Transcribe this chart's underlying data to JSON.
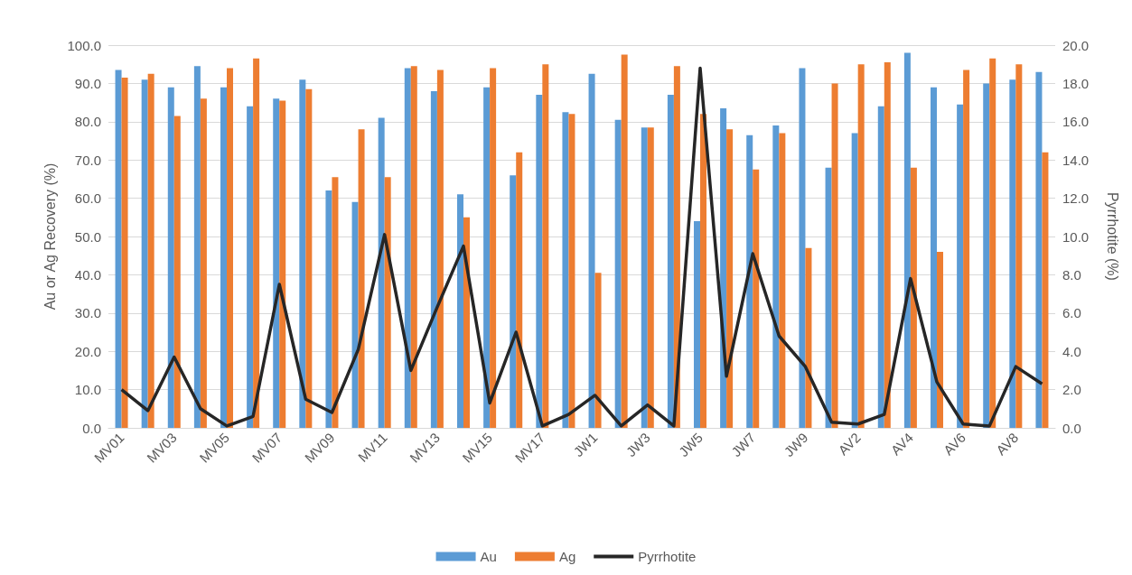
{
  "chart_data": {
    "type": "bar",
    "ylabel": "Au or Ag Recovery (%)",
    "y2label": "Pyrrhotite (%)",
    "categories": [
      "MV01",
      null,
      "MV03",
      null,
      "MV05",
      null,
      "MV07",
      null,
      "MV09",
      null,
      "MV11",
      null,
      "MV13",
      null,
      "MV15",
      null,
      "MV17",
      null,
      "JW1",
      null,
      "JW3",
      null,
      "JW5",
      null,
      "JW7",
      null,
      "JW9",
      null,
      "AV2",
      null,
      "AV4",
      null,
      "AV6",
      null,
      "AV8",
      null
    ],
    "series": [
      {
        "name": "Au",
        "color": "#5b9bd5",
        "values": [
          93.5,
          91,
          89,
          94.5,
          89,
          84,
          86,
          91,
          62,
          59,
          81,
          94,
          88,
          61,
          89,
          66,
          87,
          82.5,
          92.5,
          80.5,
          78.5,
          87,
          54,
          83.5,
          76.5,
          79,
          94,
          68,
          77,
          84,
          98,
          89,
          84.5,
          90,
          91,
          93
        ]
      },
      {
        "name": "Ag",
        "color": "#ed7d31",
        "values": [
          91.5,
          92.5,
          81.5,
          86,
          94,
          96.5,
          85.5,
          88.5,
          65.5,
          78,
          65.5,
          94.5,
          93.5,
          55,
          94,
          72,
          95,
          82,
          40.5,
          97.5,
          78.5,
          94.5,
          82,
          78,
          67.5,
          77,
          47,
          90,
          95,
          95.5,
          68,
          46,
          93.5,
          96.5,
          95,
          72
        ]
      },
      {
        "name": "Pyrrhotite",
        "type": "line",
        "axis": "y2",
        "color": "#262626",
        "values": [
          2.0,
          0.9,
          3.7,
          1.0,
          0.1,
          0.6,
          7.5,
          1.5,
          0.8,
          4.1,
          10.1,
          3.0,
          6.3,
          9.5,
          1.3,
          5.0,
          0.1,
          0.7,
          1.7,
          0.1,
          1.2,
          0.1,
          18.8,
          2.7,
          9.1,
          4.8,
          3.2,
          0.3,
          0.2,
          0.7,
          7.8,
          2.4,
          0.2,
          0.1,
          3.2,
          2.3
        ]
      }
    ],
    "ylim": [
      0,
      100
    ],
    "yticks": [
      {
        "value": 0,
        "label": "0.0"
      },
      {
        "value": 10,
        "label": "10.0"
      },
      {
        "value": 20,
        "label": "20.0"
      },
      {
        "value": 30,
        "label": "30.0"
      },
      {
        "value": 40,
        "label": "40.0"
      },
      {
        "value": 50,
        "label": "50.0"
      },
      {
        "value": 60,
        "label": "60.0"
      },
      {
        "value": 70,
        "label": "70.0"
      },
      {
        "value": 80,
        "label": "80.0"
      },
      {
        "value": 90,
        "label": "90.0"
      },
      {
        "value": 100,
        "label": "100.0"
      }
    ],
    "y2lim": [
      0,
      20
    ],
    "y2ticks": [
      {
        "value": 0,
        "label": "0.0"
      },
      {
        "value": 2,
        "label": "2.0"
      },
      {
        "value": 4,
        "label": "4.0"
      },
      {
        "value": 6,
        "label": "6.0"
      },
      {
        "value": 8,
        "label": "8.0"
      },
      {
        "value": 10,
        "label": "10.0"
      },
      {
        "value": 12,
        "label": "12.0"
      },
      {
        "value": 14,
        "label": "14.0"
      },
      {
        "value": 16,
        "label": "16.0"
      },
      {
        "value": 18,
        "label": "18.0"
      },
      {
        "value": 20,
        "label": "20.0"
      }
    ],
    "grid": "y",
    "legend": "bottom",
    "marker": "none",
    "line_style": "solid"
  }
}
